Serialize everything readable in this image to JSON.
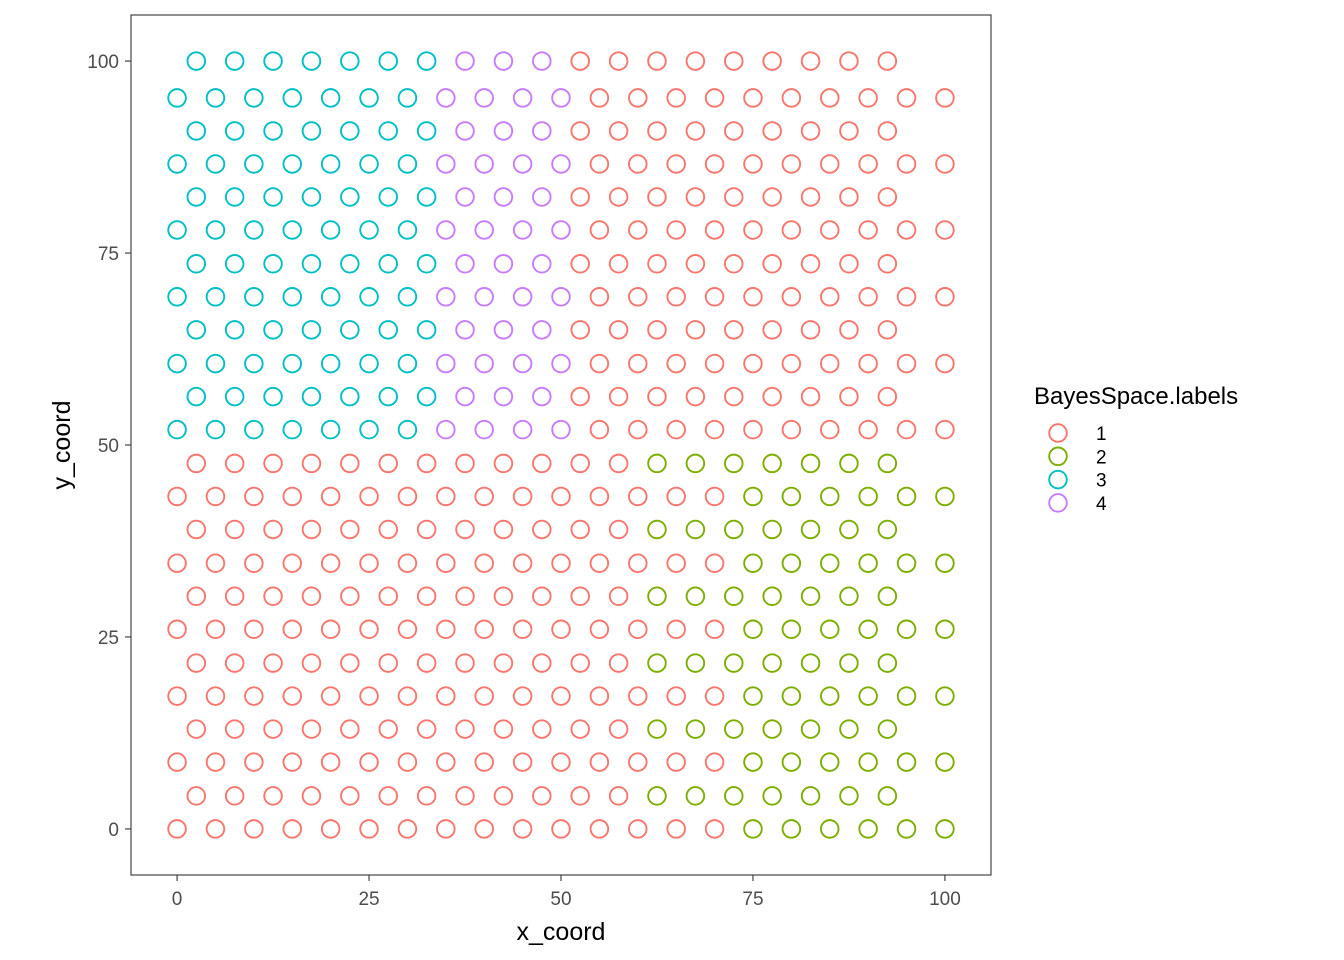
{
  "chart_data": {
    "type": "scatter",
    "xlabel": "x_coord",
    "ylabel": "y_coord",
    "xlim": [
      -6,
      106
    ],
    "ylim": [
      -6,
      106
    ],
    "x_ticks": [
      0,
      25,
      50,
      75,
      100
    ],
    "x_tick_labels": [
      "0",
      "25",
      "50",
      "75",
      "100"
    ],
    "y_ticks": [
      0,
      25,
      50,
      75,
      100
    ],
    "y_tick_labels": [
      "0",
      "25",
      "50",
      "75",
      "100"
    ],
    "grid": false,
    "marker": "open-circle",
    "legend": {
      "title": "BayesSpace.labels",
      "placement": "right",
      "entries": [
        {
          "label": "1",
          "color": "#F8766D"
        },
        {
          "label": "2",
          "color": "#7CAE00"
        },
        {
          "label": "3",
          "color": "#00BFC4"
        },
        {
          "label": "4",
          "color": "#C77CFF"
        }
      ]
    },
    "rows": [
      {
        "y": 100,
        "x_start": 2.5,
        "x_step": 5,
        "labels": "3333333444111111111"
      },
      {
        "y": 95.2,
        "x_start": 0,
        "x_step": 5,
        "labels": "333333344441111111111"
      },
      {
        "y": 90.9,
        "x_start": 2.5,
        "x_step": 5,
        "labels": "3333333444111111111"
      },
      {
        "y": 86.6,
        "x_start": 0,
        "x_step": 5,
        "labels": "333333344441111111111"
      },
      {
        "y": 82.3,
        "x_start": 2.5,
        "x_step": 5,
        "labels": "3333333444111111111"
      },
      {
        "y": 78,
        "x_start": 0,
        "x_step": 5,
        "labels": "333333344441111111111"
      },
      {
        "y": 73.6,
        "x_start": 2.5,
        "x_step": 5,
        "labels": "3333333444111111111"
      },
      {
        "y": 69.3,
        "x_start": 0,
        "x_step": 5,
        "labels": "333333344441111111111"
      },
      {
        "y": 65,
        "x_start": 2.5,
        "x_step": 5,
        "labels": "3333333444111111111"
      },
      {
        "y": 60.6,
        "x_start": 0,
        "x_step": 5,
        "labels": "333333344441111111111"
      },
      {
        "y": 56.3,
        "x_start": 2.5,
        "x_step": 5,
        "labels": "3333333444111111111"
      },
      {
        "y": 52,
        "x_start": 0,
        "x_step": 5,
        "labels": "333333344441111111111"
      },
      {
        "y": 47.6,
        "x_start": 2.5,
        "x_step": 5,
        "labels": "1111111111112222222"
      },
      {
        "y": 43.3,
        "x_start": 0,
        "x_step": 5,
        "labels": "111111111111111222222"
      },
      {
        "y": 39,
        "x_start": 2.5,
        "x_step": 5,
        "labels": "1111111111112222222"
      },
      {
        "y": 34.6,
        "x_start": 0,
        "x_step": 5,
        "labels": "111111111111111222222"
      },
      {
        "y": 30.3,
        "x_start": 2.5,
        "x_step": 5,
        "labels": "1111111111112222222"
      },
      {
        "y": 26,
        "x_start": 0,
        "x_step": 5,
        "labels": "111111111111111222222"
      },
      {
        "y": 21.6,
        "x_start": 2.5,
        "x_step": 5,
        "labels": "1111111111112222222"
      },
      {
        "y": 17.3,
        "x_start": 0,
        "x_step": 5,
        "labels": "111111111111111222222"
      },
      {
        "y": 13,
        "x_start": 2.5,
        "x_step": 5,
        "labels": "1111111111112222222"
      },
      {
        "y": 8.7,
        "x_start": 0,
        "x_step": 5,
        "labels": "111111111111111222222"
      },
      {
        "y": 4.3,
        "x_start": 2.5,
        "x_step": 5,
        "labels": "1111111111112222222"
      },
      {
        "y": 0,
        "x_start": 0,
        "x_step": 5,
        "labels": "111111111111111222222"
      }
    ]
  }
}
